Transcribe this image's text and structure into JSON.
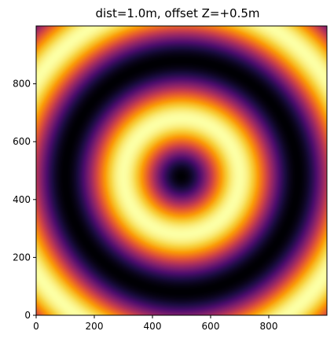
{
  "chart_data": {
    "type": "heatmap",
    "title": "dist=1.0m, offset Z=+0.5m",
    "xlabel": "",
    "ylabel": "",
    "xlim": [
      0,
      1000
    ],
    "ylim": [
      0,
      1000
    ],
    "x_ticks": [
      0,
      200,
      400,
      600,
      800
    ],
    "y_ticks": [
      0,
      200,
      400,
      600,
      800
    ],
    "grid": false,
    "legend": "none",
    "colormap": "inferno",
    "colormap_stops": [
      "#000004",
      "#1b0c41",
      "#4a0c6b",
      "#781c6d",
      "#a52c60",
      "#cf4446",
      "#ed6925",
      "#fb9b06",
      "#f7d13d",
      "#fcffa4"
    ],
    "pattern": {
      "function": "sin^2(pi * r / period)",
      "center": [
        500,
        480
      ],
      "ring_period": 400,
      "intensity_range": [
        0,
        1
      ],
      "bright_ring_radii": [
        200,
        600
      ],
      "dark_ring_radii": [
        0,
        400
      ]
    }
  }
}
